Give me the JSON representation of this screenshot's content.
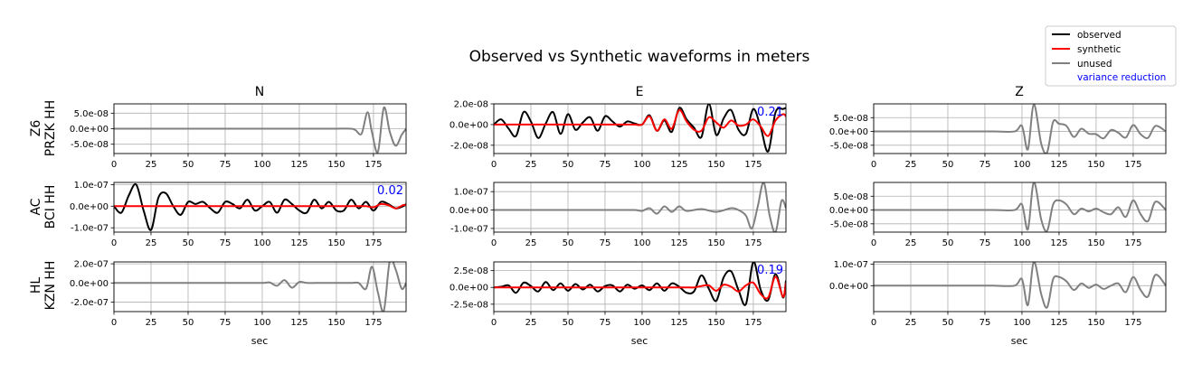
{
  "chart_data": {
    "type": "line",
    "title": "Observed vs Synthetic waveforms in meters",
    "columns": [
      "N",
      "E",
      "Z"
    ],
    "rows": [
      {
        "label_top": "Z6",
        "label_bottom": "PRZK HH"
      },
      {
        "label_top": "AC",
        "label_bottom": "BCI HH"
      },
      {
        "label_top": "HL",
        "label_bottom": "KZN HH"
      }
    ],
    "xlabel": "sec",
    "xlim": [
      0,
      197
    ],
    "xticks": [
      "0",
      "25",
      "50",
      "75",
      "100",
      "125",
      "150",
      "175"
    ],
    "grid": true,
    "legend": {
      "placement": "top-right",
      "entries": [
        {
          "label": "observed",
          "color": "#000000"
        },
        {
          "label": "synthetic",
          "color": "#ff0000"
        },
        {
          "label": "unused",
          "color": "#808080"
        },
        {
          "label": "variance reduction",
          "color": "#0000ff"
        }
      ]
    },
    "colors": {
      "observed": "#000000",
      "synthetic": "#ff0000",
      "unused": "#808080",
      "vr": "#0000ff"
    },
    "panels": [
      {
        "row": 0,
        "col": 0,
        "used": false,
        "ylim": [
          -8e-08,
          8e-08
        ],
        "yticks": [
          {
            "v": 5e-08,
            "t": "5.0e-08"
          },
          {
            "v": 0,
            "t": "0.0e+00"
          },
          {
            "v": -5e-08,
            "t": "-5.0e-08"
          }
        ],
        "vr": "",
        "x": [
          0,
          20,
          40,
          60,
          80,
          100,
          110,
          120,
          130,
          140,
          150,
          160,
          163,
          167,
          171,
          174,
          178,
          182,
          186,
          190,
          194,
          197
        ],
        "observed": [
          0,
          0,
          0,
          0,
          0,
          0,
          0,
          0,
          0,
          0,
          0,
          0,
          -5e-09,
          -1.6e-08,
          5.3e-08,
          -1.2e-08,
          -7.5e-08,
          6.8e-08,
          -1e-08,
          -5.5e-08,
          -2e-08,
          0
        ],
        "synthetic": []
      },
      {
        "row": 0,
        "col": 1,
        "used": true,
        "ylim": [
          -2.8e-08,
          2e-08
        ],
        "yticks": [
          {
            "v": 2e-08,
            "t": "2.0e-08"
          },
          {
            "v": 0,
            "t": "0.0e+00"
          },
          {
            "v": -2e-08,
            "t": "-2.0e-08"
          }
        ],
        "vr": "0.21",
        "x": [
          0,
          5,
          10,
          15,
          20,
          25,
          30,
          35,
          40,
          45,
          50,
          55,
          60,
          65,
          70,
          75,
          80,
          85,
          90,
          95,
          100,
          105,
          110,
          115,
          120,
          125,
          130,
          135,
          140,
          145,
          150,
          155,
          160,
          165,
          170,
          175,
          180,
          185,
          190,
          195,
          197
        ],
        "observed": [
          0,
          5e-09,
          -4e-09,
          -1.1e-08,
          1.2e-08,
          3e-09,
          -1.3e-08,
          1e-09,
          1.2e-08,
          -9e-09,
          1e-08,
          -5e-09,
          2e-09,
          7e-09,
          -6e-09,
          8e-09,
          3e-09,
          -2e-09,
          3e-09,
          1e-09,
          0,
          9e-09,
          -6e-09,
          4e-09,
          -7e-09,
          1.6e-08,
          5e-09,
          -3e-09,
          -1.2e-08,
          2e-08,
          -1e-08,
          6e-09,
          1.4e-08,
          -5e-09,
          -9e-09,
          1.5e-08,
          -3e-09,
          -2.6e-08,
          1.2e-08,
          1.5e-08,
          1.6e-08
        ],
        "synthetic": [
          0,
          0,
          0,
          0,
          0,
          0,
          0,
          0,
          0,
          0,
          0,
          0,
          0,
          0,
          0,
          0,
          0,
          0,
          0,
          0,
          0,
          8e-09,
          -6e-09,
          5e-09,
          -4e-09,
          1.4e-08,
          3e-09,
          -5e-09,
          -6e-09,
          7e-09,
          2e-09,
          -3e-09,
          4e-09,
          -1e-09,
          0,
          5e-09,
          -2e-09,
          -1.1e-08,
          4e-09,
          1e-08,
          8e-09
        ]
      },
      {
        "row": 0,
        "col": 2,
        "used": false,
        "ylim": [
          -8e-08,
          1e-07
        ],
        "yticks": [
          {
            "v": 5e-08,
            "t": "5.0e-08"
          },
          {
            "v": 0,
            "t": "0.0e+00"
          },
          {
            "v": -5e-08,
            "t": "-5.0e-08"
          }
        ],
        "vr": "",
        "x": [
          0,
          20,
          40,
          60,
          80,
          95,
          100,
          104,
          108,
          113,
          117,
          121,
          125,
          130,
          135,
          140,
          145,
          150,
          155,
          160,
          165,
          170,
          175,
          180,
          185,
          190,
          197
        ],
        "observed": [
          0,
          0,
          0,
          0,
          0,
          0,
          2e-08,
          -6.5e-08,
          9.8e-08,
          -4.5e-08,
          -7.5e-08,
          3.5e-08,
          2.8e-08,
          2e-08,
          -2e-08,
          1e-08,
          -8e-09,
          -1e-08,
          -2.5e-08,
          5e-09,
          -5e-09,
          -2.2e-08,
          2.3e-08,
          -1e-08,
          -2.3e-08,
          2e-08,
          0
        ],
        "synthetic": []
      },
      {
        "row": 1,
        "col": 0,
        "used": true,
        "ylim": [
          -1.2e-07,
          1.1e-07
        ],
        "yticks": [
          {
            "v": 1e-07,
            "t": "1.0e-07"
          },
          {
            "v": 0,
            "t": "0.0e+00"
          },
          {
            "v": -1e-07,
            "t": "-1.0e-07"
          }
        ],
        "vr": "0.02",
        "x": [
          0,
          5,
          10,
          15,
          20,
          25,
          30,
          35,
          40,
          45,
          50,
          55,
          60,
          65,
          70,
          75,
          80,
          85,
          90,
          95,
          100,
          105,
          110,
          115,
          120,
          125,
          130,
          135,
          140,
          145,
          150,
          155,
          160,
          165,
          170,
          175,
          180,
          185,
          190,
          195,
          197
        ],
        "observed": [
          0,
          -3e-08,
          5e-08,
          1e-07,
          -2e-08,
          -1.1e-07,
          4e-08,
          6e-08,
          0,
          -4e-08,
          2e-08,
          1e-08,
          2e-08,
          -1e-08,
          -3e-08,
          2e-08,
          1e-08,
          -1e-08,
          3e-08,
          -2e-08,
          0,
          2e-08,
          -3e-08,
          3e-08,
          1e-08,
          -2e-08,
          -3e-08,
          3e-08,
          -1e-08,
          2e-08,
          -2e-08,
          -2e-08,
          3e-08,
          -1e-08,
          2e-08,
          -2e-08,
          2e-08,
          1e-08,
          -1e-08,
          0,
          1e-08
        ],
        "synthetic": [
          0,
          0,
          0,
          0,
          0,
          0,
          0,
          0,
          0,
          0,
          0,
          0,
          0,
          0,
          0,
          0,
          0,
          0,
          0,
          0,
          0,
          0,
          0,
          0,
          0,
          0,
          0,
          0,
          0,
          0,
          0,
          0,
          0,
          0,
          0,
          -5e-09,
          1e-08,
          5e-09,
          -1e-08,
          5e-09,
          5e-09
        ]
      },
      {
        "row": 1,
        "col": 1,
        "used": false,
        "ylim": [
          -1.2e-07,
          1.5e-07
        ],
        "yticks": [
          {
            "v": 1e-07,
            "t": "1.0e-07"
          },
          {
            "v": 0,
            "t": "0.0e+00"
          },
          {
            "v": -1e-07,
            "t": "-1.0e-07"
          }
        ],
        "vr": "",
        "x": [
          0,
          20,
          40,
          60,
          80,
          95,
          100,
          105,
          110,
          115,
          120,
          125,
          130,
          140,
          150,
          160,
          165,
          170,
          174,
          178,
          182,
          186,
          190,
          194,
          197
        ],
        "observed": [
          0,
          0,
          0,
          0,
          0,
          0,
          -5e-09,
          1e-08,
          -2e-08,
          2e-08,
          -1e-08,
          2e-08,
          -5e-09,
          5e-09,
          -1e-08,
          1e-08,
          0,
          -3e-08,
          -1e-07,
          2e-08,
          1.5e-07,
          -3e-08,
          -1.2e-07,
          5e-08,
          1e-08
        ],
        "synthetic": []
      },
      {
        "row": 1,
        "col": 2,
        "used": false,
        "ylim": [
          -8e-08,
          1e-07
        ],
        "yticks": [
          {
            "v": 5e-08,
            "t": "5.0e-08"
          },
          {
            "v": 0,
            "t": "0.0e+00"
          },
          {
            "v": -5e-08,
            "t": "-5.0e-08"
          }
        ],
        "vr": "",
        "x": [
          0,
          20,
          40,
          60,
          80,
          95,
          100,
          104,
          108,
          113,
          117,
          121,
          125,
          130,
          135,
          140,
          145,
          150,
          155,
          160,
          165,
          170,
          175,
          180,
          185,
          190,
          197
        ],
        "observed": [
          0,
          0,
          0,
          0,
          0,
          0,
          2e-08,
          -7e-08,
          1e-07,
          -3.5e-08,
          -7.5e-08,
          2e-08,
          3.5e-08,
          2e-08,
          -1.5e-08,
          5e-09,
          -5e-09,
          5e-09,
          -8e-09,
          -1.5e-08,
          1e-08,
          -2.5e-08,
          3.5e-08,
          -1.5e-08,
          -4e-08,
          3e-08,
          0
        ],
        "synthetic": []
      },
      {
        "row": 2,
        "col": 0,
        "used": false,
        "ylim": [
          -3e-07,
          2.2e-07
        ],
        "yticks": [
          {
            "v": 2e-07,
            "t": "2.0e-07"
          },
          {
            "v": 0,
            "t": "0.0e+00"
          },
          {
            "v": -2e-07,
            "t": "-2.0e-07"
          }
        ],
        "vr": "",
        "x": [
          0,
          20,
          40,
          60,
          80,
          100,
          105,
          110,
          115,
          120,
          125,
          130,
          140,
          150,
          160,
          165,
          170,
          174,
          178,
          182,
          186,
          190,
          194,
          197
        ],
        "observed": [
          0,
          0,
          0,
          0,
          0,
          0,
          5e-09,
          -3e-08,
          3e-08,
          -5e-08,
          1e-08,
          0,
          0,
          0,
          0,
          0,
          -6e-08,
          1.7e-07,
          -1e-07,
          -2.9e-07,
          2.3e-07,
          1.4e-07,
          -6e-08,
          0
        ],
        "synthetic": []
      },
      {
        "row": 2,
        "col": 1,
        "used": true,
        "ylim": [
          -3.6e-08,
          3.8e-08
        ],
        "yticks": [
          {
            "v": 2.5e-08,
            "t": "2.5e-08"
          },
          {
            "v": 0,
            "t": "0.0e+00"
          },
          {
            "v": -2.5e-08,
            "t": "-2.5e-08"
          }
        ],
        "vr": "0.19",
        "x": [
          0,
          5,
          10,
          15,
          20,
          25,
          30,
          35,
          40,
          45,
          50,
          55,
          60,
          65,
          70,
          75,
          80,
          85,
          90,
          95,
          100,
          105,
          110,
          115,
          120,
          125,
          130,
          135,
          140,
          145,
          150,
          155,
          160,
          165,
          170,
          175,
          180,
          185,
          190,
          195,
          197
        ],
        "observed": [
          0,
          1e-09,
          3e-09,
          -8e-09,
          7e-09,
          2e-09,
          -6e-09,
          8e-09,
          -4e-09,
          6e-09,
          -5e-09,
          5e-09,
          -3e-09,
          4e-09,
          -6e-09,
          2e-09,
          3e-09,
          -6e-09,
          4e-09,
          -2e-09,
          3e-09,
          -4e-09,
          6e-09,
          -5e-09,
          6e-09,
          1e-09,
          -8e-09,
          -6e-09,
          1.8e-08,
          -2e-09,
          -2e-08,
          1.5e-08,
          2.4e-08,
          -4e-09,
          -2.5e-08,
          3.8e-08,
          -4e-09,
          -1.9e-08,
          2e-08,
          -1.5e-08,
          1e-08
        ],
        "synthetic": [
          0,
          0,
          0,
          0,
          0,
          0,
          0,
          0,
          0,
          0,
          0,
          0,
          0,
          0,
          0,
          0,
          0,
          0,
          0,
          0,
          0,
          0,
          0,
          0,
          0,
          0,
          0,
          0,
          2e-09,
          3e-09,
          -5e-09,
          4e-09,
          1e-09,
          -6e-09,
          3e-09,
          7e-09,
          -1e-08,
          -1.5e-08,
          1.6e-08,
          -1.4e-08,
          7e-09
        ]
      },
      {
        "row": 2,
        "col": 2,
        "used": false,
        "ylim": [
          -1.2e-07,
          1.1e-07
        ],
        "yticks": [
          {
            "v": 1e-07,
            "t": "1.0e-07"
          },
          {
            "v": 0,
            "t": "0.0e+00"
          }
        ],
        "vr": "",
        "x": [
          0,
          20,
          40,
          60,
          80,
          95,
          100,
          104,
          108,
          113,
          117,
          121,
          125,
          130,
          135,
          140,
          145,
          150,
          155,
          160,
          165,
          170,
          175,
          180,
          185,
          190,
          197
        ],
        "observed": [
          0,
          0,
          0,
          0,
          0,
          0,
          3e-08,
          -9e-08,
          1.1e-07,
          -4e-08,
          -1e-07,
          3e-08,
          4e-08,
          2e-08,
          -2e-08,
          1e-08,
          -1e-08,
          5e-09,
          -1.5e-08,
          0,
          1e-08,
          -3e-08,
          4e-08,
          -2e-08,
          -5e-08,
          5e-08,
          0
        ],
        "synthetic": []
      }
    ]
  }
}
